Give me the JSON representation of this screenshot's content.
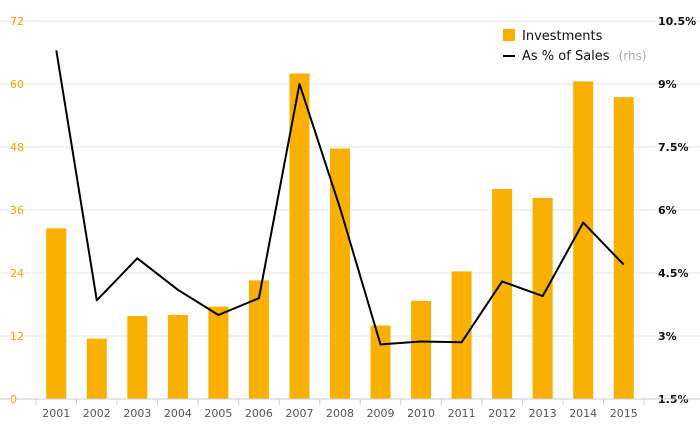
{
  "chart_data": {
    "type": "bar",
    "categories": [
      "2001",
      "2002",
      "2003",
      "2004",
      "2005",
      "2006",
      "2007",
      "2008",
      "2009",
      "2010",
      "2011",
      "2012",
      "2013",
      "2014",
      "2015"
    ],
    "series": [
      {
        "name": "Investments",
        "type": "bar",
        "axis": "left",
        "values": [
          32.5,
          11.5,
          15.8,
          16.0,
          17.6,
          22.6,
          62.0,
          47.7,
          14.0,
          18.7,
          24.3,
          40.0,
          38.3,
          60.5,
          57.5
        ]
      },
      {
        "name": "As % of Sales",
        "name_suffix": "(rhs)",
        "type": "line",
        "axis": "right",
        "values": [
          9.8,
          3.85,
          4.85,
          4.1,
          3.5,
          3.9,
          9.0,
          6.05,
          2.8,
          2.87,
          2.85,
          4.3,
          3.95,
          5.7,
          4.7
        ]
      }
    ],
    "y_left": {
      "ylim": [
        0,
        72
      ],
      "ticks": [
        "0",
        "12",
        "24",
        "36",
        "48",
        "60",
        "72"
      ]
    },
    "y_right": {
      "ylim": [
        1.5,
        10.5
      ],
      "ticks": [
        "1.5%",
        "3%",
        "4.5%",
        "6%",
        "7.5%",
        "9%",
        "10.5%"
      ]
    },
    "grid": true,
    "legend_position": "top-right",
    "colors": {
      "bar": "#f9b000",
      "line": "#000000",
      "left_tick": "#f0a800",
      "right_tick": "#111111",
      "grid": "#e6e6e6"
    }
  }
}
